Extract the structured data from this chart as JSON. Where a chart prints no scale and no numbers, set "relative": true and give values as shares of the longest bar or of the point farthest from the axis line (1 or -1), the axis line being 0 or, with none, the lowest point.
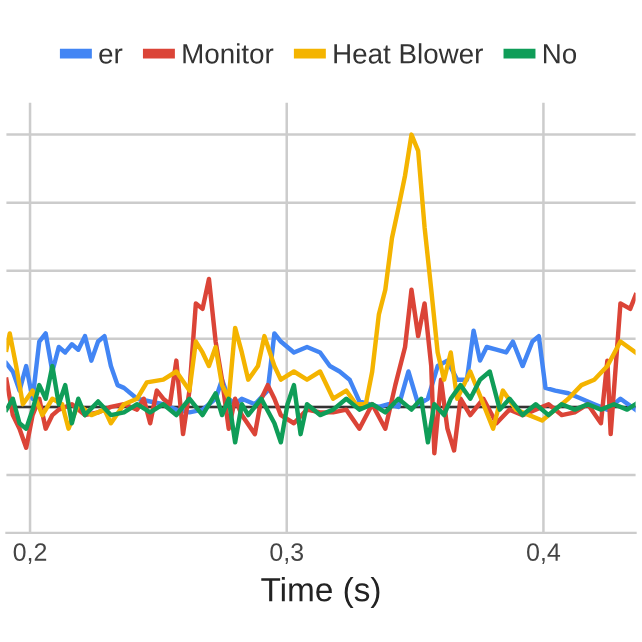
{
  "chart_data": {
    "type": "line",
    "relative": true,
    "xlabel": "Time (s)",
    "xlim": [
      0.1908,
      0.4359
    ],
    "xticks": [
      {
        "value": 0.2,
        "label": "0,2"
      },
      {
        "value": 0.3,
        "label": "0,3"
      },
      {
        "value": 0.4,
        "label": "0,4"
      }
    ],
    "grid": true,
    "legend": "top",
    "tick_labels": "x",
    "line_style": "solid",
    "marker": "none",
    "series": [
      {
        "name": "er",
        "color": "#4285f4",
        "x": [
          0.1908,
          0.1933,
          0.1959,
          0.1985,
          0.201,
          0.2036,
          0.2061,
          0.2087,
          0.2112,
          0.2137,
          0.2163,
          0.2188,
          0.2214,
          0.2239,
          0.2265,
          0.229,
          0.2315,
          0.2341,
          0.2366,
          0.2417,
          0.2468,
          0.2519,
          0.257,
          0.2621,
          0.2672,
          0.2723,
          0.2748,
          0.2774,
          0.2799,
          0.2825,
          0.2876,
          0.2926,
          0.2952,
          0.2977,
          0.3028,
          0.3079,
          0.313,
          0.3168,
          0.3206,
          0.3245,
          0.3283,
          0.3321,
          0.3359,
          0.3397,
          0.3435,
          0.3474,
          0.3512,
          0.355,
          0.3588,
          0.3626,
          0.3664,
          0.3702,
          0.3728,
          0.3753,
          0.3779,
          0.3817,
          0.3855,
          0.3881,
          0.3919,
          0.3957,
          0.3982,
          0.4008,
          0.4046,
          0.4097,
          0.4148,
          0.4198,
          0.4249,
          0.43,
          0.4359
        ],
        "values": [
          0.16,
          0.13,
          0.06,
          0.15,
          0.03,
          0.24,
          0.27,
          0.13,
          0.22,
          0.2,
          0.23,
          0.21,
          0.26,
          0.17,
          0.24,
          0.26,
          0.15,
          0.08,
          0.07,
          0.03,
          0.02,
          0.01,
          -0.01,
          -0.02,
          -0.01,
          0.03,
          0.1,
          0.03,
          0.01,
          0.03,
          0.01,
          0.06,
          0.27,
          0.24,
          0.2,
          0.22,
          0.2,
          0.15,
          0.13,
          0.1,
          0.02,
          0.01,
          0,
          0.01,
          0,
          0.13,
          0.01,
          0.03,
          0.15,
          0.17,
          0.1,
          0.1,
          0.28,
          0.17,
          0.22,
          0.21,
          0.2,
          0.24,
          0.15,
          0.24,
          0.26,
          0.07,
          0.06,
          0.05,
          0.03,
          0.01,
          -0.01,
          0.03,
          -0.01
        ]
      },
      {
        "name": "Monitor",
        "color": "#db4437",
        "x": [
          0.1908,
          0.1933,
          0.1959,
          0.1985,
          0.201,
          0.2036,
          0.2061,
          0.2087,
          0.2112,
          0.2163,
          0.2214,
          0.2265,
          0.2315,
          0.2366,
          0.2417,
          0.2443,
          0.2468,
          0.2494,
          0.2519,
          0.2545,
          0.257,
          0.2596,
          0.2621,
          0.2646,
          0.2672,
          0.2697,
          0.2723,
          0.2748,
          0.2774,
          0.2799,
          0.2825,
          0.2876,
          0.2901,
          0.2926,
          0.2952,
          0.2977,
          0.3028,
          0.3079,
          0.313,
          0.3181,
          0.3232,
          0.3283,
          0.3333,
          0.3384,
          0.3423,
          0.3461,
          0.3486,
          0.3512,
          0.3537,
          0.3563,
          0.3575,
          0.3601,
          0.3626,
          0.3652,
          0.3677,
          0.3715,
          0.3766,
          0.3817,
          0.3868,
          0.3919,
          0.397,
          0.402,
          0.4071,
          0.4122,
          0.4173,
          0.4224,
          0.4249,
          0.4262,
          0.43,
          0.4338,
          0.4359
        ],
        "values": [
          0.1,
          -0.03,
          -0.08,
          -0.15,
          -0.03,
          0.03,
          -0.08,
          -0.03,
          -0.01,
          0.01,
          -0.03,
          -0.02,
          0,
          0.01,
          -0.01,
          0.03,
          -0.06,
          0.06,
          0.03,
          0.01,
          0.17,
          -0.1,
          0.06,
          0.38,
          0.36,
          0.47,
          0.24,
          0.1,
          -0.08,
          0.03,
          -0.03,
          -0.1,
          0.03,
          0.08,
          0.03,
          -0.03,
          -0.06,
          -0.01,
          -0.02,
          -0.02,
          -0.01,
          -0.08,
          0.01,
          -0.08,
          0.08,
          0.22,
          0.43,
          0.26,
          0.38,
          0.15,
          -0.17,
          0.1,
          -0.08,
          -0.16,
          0.03,
          -0.03,
          0.03,
          -0.06,
          -0.01,
          -0.03,
          -0.01,
          0.01,
          -0.03,
          -0.02,
          0.01,
          -0.06,
          0.17,
          -0.1,
          0.38,
          0.36,
          0.41
        ]
      },
      {
        "name": "Heat Blower",
        "color": "#f4b400",
        "x": [
          0.1908,
          0.1921,
          0.1946,
          0.1972,
          0.201,
          0.2048,
          0.2087,
          0.2125,
          0.215,
          0.2188,
          0.2239,
          0.229,
          0.2315,
          0.2366,
          0.2417,
          0.2455,
          0.2519,
          0.257,
          0.2621,
          0.2646,
          0.2672,
          0.2697,
          0.2723,
          0.2748,
          0.2774,
          0.2799,
          0.2825,
          0.285,
          0.2888,
          0.2913,
          0.2952,
          0.2977,
          0.3028,
          0.3079,
          0.313,
          0.3181,
          0.3232,
          0.327,
          0.3308,
          0.3333,
          0.3359,
          0.3384,
          0.341,
          0.3435,
          0.3461,
          0.3486,
          0.3512,
          0.3537,
          0.3563,
          0.3588,
          0.3613,
          0.3639,
          0.3664,
          0.3715,
          0.3766,
          0.3804,
          0.3842,
          0.3893,
          0.3944,
          0.3995,
          0.4046,
          0.4097,
          0.4148,
          0.4198,
          0.4249,
          0.43,
          0.4359
        ],
        "values": [
          0.21,
          0.27,
          0.15,
          0.01,
          0.06,
          -0.03,
          0.03,
          0.01,
          -0.08,
          0.01,
          -0.03,
          -0.01,
          -0.06,
          0.01,
          0.03,
          0.09,
          0.1,
          0.13,
          0.06,
          0.24,
          0.2,
          0.15,
          0.22,
          0.08,
          0.03,
          0.29,
          0.2,
          0.1,
          0.15,
          0.26,
          0.15,
          0.1,
          0.13,
          0.1,
          0.13,
          0.03,
          0.06,
          0.01,
          0.01,
          0.13,
          0.34,
          0.43,
          0.62,
          0.73,
          0.85,
          1.0,
          0.94,
          0.66,
          0.43,
          0.2,
          0.1,
          0.2,
          0.03,
          0.13,
          0.01,
          -0.08,
          0.06,
          -0.01,
          -0.03,
          -0.05,
          -0.01,
          0.03,
          0.08,
          0.1,
          0.15,
          0.24,
          0.2
        ]
      },
      {
        "name": "No",
        "color": "#0f9d58",
        "x": [
          0.1908,
          0.1933,
          0.1959,
          0.1985,
          0.201,
          0.2036,
          0.2061,
          0.2087,
          0.2112,
          0.2137,
          0.2163,
          0.2188,
          0.2214,
          0.2265,
          0.2315,
          0.2366,
          0.2417,
          0.2468,
          0.2519,
          0.257,
          0.2621,
          0.2672,
          0.2723,
          0.2748,
          0.2774,
          0.2799,
          0.2825,
          0.285,
          0.2901,
          0.2952,
          0.2977,
          0.3003,
          0.3028,
          0.3054,
          0.3079,
          0.313,
          0.3181,
          0.3232,
          0.3283,
          0.3333,
          0.3384,
          0.3435,
          0.3486,
          0.3524,
          0.355,
          0.3575,
          0.3613,
          0.3639,
          0.3677,
          0.3715,
          0.3753,
          0.3791,
          0.383,
          0.3868,
          0.3919,
          0.397,
          0.402,
          0.4071,
          0.4122,
          0.4173,
          0.4224,
          0.4275,
          0.4326,
          0.4359
        ],
        "values": [
          -0.01,
          0.03,
          -0.06,
          -0.08,
          -0.01,
          0.08,
          0.03,
          0.15,
          0.01,
          0.08,
          -0.06,
          0.03,
          -0.03,
          0.02,
          -0.03,
          -0.02,
          0.01,
          -0.02,
          0.01,
          -0.03,
          0.03,
          -0.03,
          0.05,
          -0.03,
          0.03,
          -0.13,
          0.01,
          -0.03,
          0.03,
          -0.06,
          -0.13,
          0.01,
          0.08,
          -0.1,
          0.01,
          -0.03,
          -0.01,
          0.03,
          -0.01,
          0.01,
          -0.02,
          0.03,
          -0.01,
          0.03,
          -0.13,
          0.01,
          -0.03,
          0.03,
          0.08,
          0.03,
          0.1,
          0.13,
          -0.01,
          0.03,
          -0.03,
          0.01,
          -0.03,
          0.01,
          -0.01,
          0.01,
          -0.01,
          0.01,
          -0.01,
          0.01
        ]
      }
    ]
  }
}
